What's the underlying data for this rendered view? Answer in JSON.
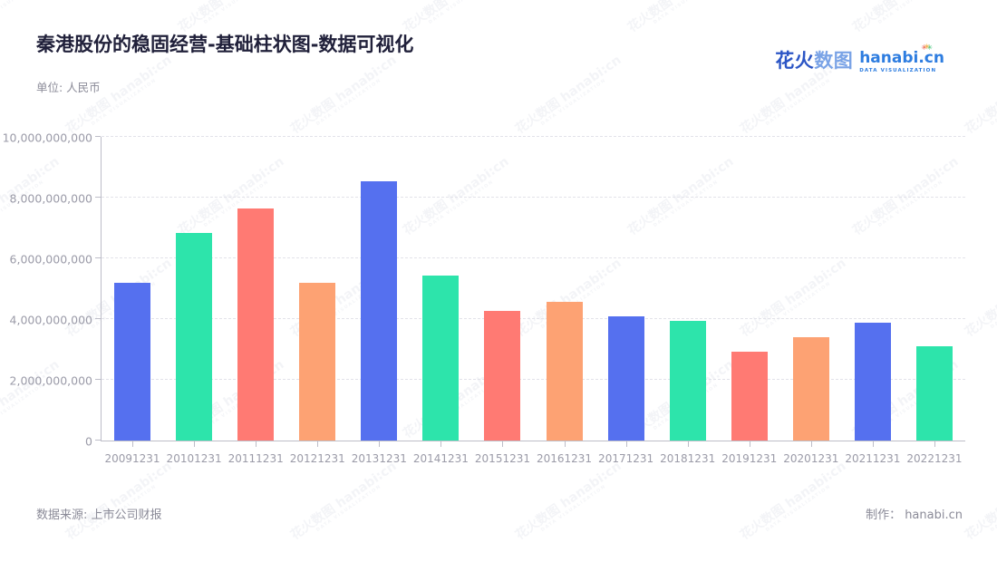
{
  "header": {
    "title": "秦港股份的稳固经营-基础柱状图-数据可视化",
    "subtitle": "单位: 人民币",
    "logo": {
      "brand_cn_primary": "花火",
      "brand_cn_secondary": "数图",
      "brand_en": "hanabi.cn",
      "tagline": "DATA VISUALIZATION"
    }
  },
  "footer": {
    "source": "数据来源: 上市公司财报",
    "credit": "制作： hanabi.cn"
  },
  "watermark": {
    "line1": "花火数图 hanabi:cn",
    "line2": "DATA VISUALIZATION"
  },
  "chart_data": {
    "type": "bar",
    "title": "秦港股份的稳固经营-基础柱状图-数据可视化",
    "unit": "人民币",
    "xlabel": "",
    "ylabel": "",
    "categories": [
      "20091231",
      "20101231",
      "20111231",
      "20121231",
      "20131231",
      "20141231",
      "20151231",
      "20161231",
      "20171231",
      "20181231",
      "20191231",
      "20201231",
      "20211231",
      "20221231"
    ],
    "values": [
      5200000000,
      6850000000,
      7630000000,
      5200000000,
      8530000000,
      5430000000,
      4260000000,
      4570000000,
      4080000000,
      3950000000,
      2930000000,
      3400000000,
      3880000000,
      3100000000
    ],
    "bar_colors_cycle": [
      "#5570EF",
      "#2DE4AB",
      "#FF7A73",
      "#FDA273"
    ],
    "ylim": [
      0,
      10000000000
    ],
    "y_tick_step": 2000000000,
    "y_tick_labels": [
      "0",
      "2,000,000,000",
      "4,000,000,000",
      "6,000,000,000",
      "8,000,000,000",
      "10,000,000,000"
    ],
    "grid": "horizontal-dashed",
    "legend": "none"
  },
  "colors": {
    "title_text": "#20203A",
    "muted_text": "#8B8B98",
    "axis_line": "#BDBDC8",
    "tick_label": "#9B9BA8",
    "gridline": "#E2E2E9",
    "logo_blue_dark": "#2B55C5",
    "logo_blue_light": "#7AA3E6",
    "logo_en_blue": "#2E7DE0"
  }
}
